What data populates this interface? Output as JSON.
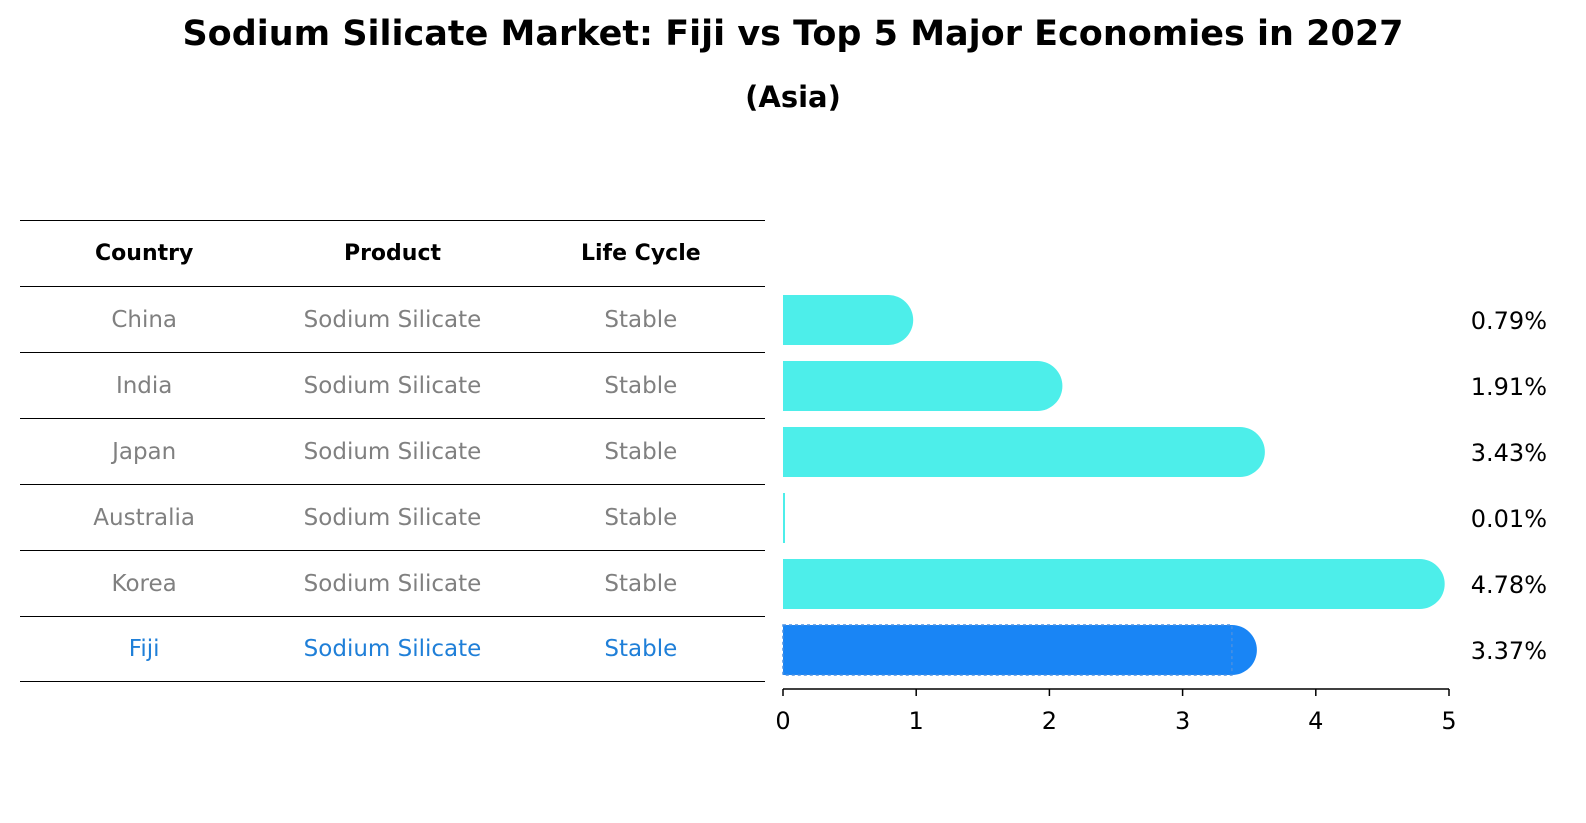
{
  "header": {
    "title": "Sodium Silicate Market: Fiji vs Top 5 Major Economies in 2027",
    "subtitle": "(Asia)"
  },
  "table": {
    "columns": [
      "Country",
      "Product",
      "Life Cycle"
    ],
    "rows": [
      {
        "country": "China",
        "product": "Sodium Silicate",
        "life_cycle": "Stable"
      },
      {
        "country": "India",
        "product": "Sodium Silicate",
        "life_cycle": "Stable"
      },
      {
        "country": "Japan",
        "product": "Sodium Silicate",
        "life_cycle": "Stable"
      },
      {
        "country": "Australia",
        "product": "Sodium Silicate",
        "life_cycle": "Stable"
      },
      {
        "country": "Korea",
        "product": "Sodium Silicate",
        "life_cycle": "Stable"
      },
      {
        "country": "Fiji",
        "product": "Sodium Silicate",
        "life_cycle": "Stable"
      }
    ]
  },
  "chart_data": {
    "type": "bar",
    "orientation": "horizontal",
    "categories": [
      "China",
      "India",
      "Japan",
      "Australia",
      "Korea",
      "Fiji"
    ],
    "values": [
      0.79,
      1.91,
      3.43,
      0.01,
      4.78,
      3.37
    ],
    "value_labels": [
      "0.79%",
      "1.91%",
      "3.43%",
      "0.01%",
      "4.78%",
      "3.37%"
    ],
    "xlim": [
      0,
      5
    ],
    "xticks": [
      0,
      1,
      2,
      3,
      4,
      5
    ],
    "highlight": "Fiji",
    "colors": {
      "default": "#4deeea",
      "highlight": "#1985f5"
    },
    "grid": false
  }
}
